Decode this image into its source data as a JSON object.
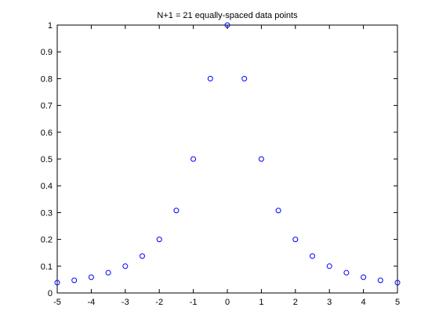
{
  "chart_data": {
    "type": "scatter",
    "title": "N+1 = 21 equally-spaced data points",
    "xlabel": "",
    "ylabel": "",
    "xlim": [
      -5,
      5
    ],
    "ylim": [
      0,
      1
    ],
    "xticks": [
      -5,
      -4,
      -3,
      -2,
      -1,
      0,
      1,
      2,
      3,
      4,
      5
    ],
    "yticks": [
      0,
      0.1,
      0.2,
      0.3,
      0.4,
      0.5,
      0.6,
      0.7,
      0.8,
      0.9,
      1
    ],
    "xtick_labels": [
      "-5",
      "-4",
      "-3",
      "-2",
      "-1",
      "0",
      "1",
      "2",
      "3",
      "4",
      "5"
    ],
    "ytick_labels": [
      "0",
      "0.1",
      "0.2",
      "0.3",
      "0.4",
      "0.5",
      "0.6",
      "0.7",
      "0.8",
      "0.9",
      "1"
    ],
    "grid": false,
    "marker_color": "#0000ff",
    "x": [
      -5,
      -4.5,
      -4,
      -3.5,
      -3,
      -2.5,
      -2,
      -1.5,
      -1,
      -0.5,
      0,
      0.5,
      1,
      1.5,
      2,
      2.5,
      3,
      3.5,
      4,
      4.5,
      5
    ],
    "y": [
      0.0385,
      0.0471,
      0.0588,
      0.0755,
      0.1,
      0.1379,
      0.2,
      0.3077,
      0.5,
      0.8,
      1.0,
      0.8,
      0.5,
      0.3077,
      0.2,
      0.1379,
      0.1,
      0.0755,
      0.0588,
      0.0471,
      0.0385
    ]
  }
}
